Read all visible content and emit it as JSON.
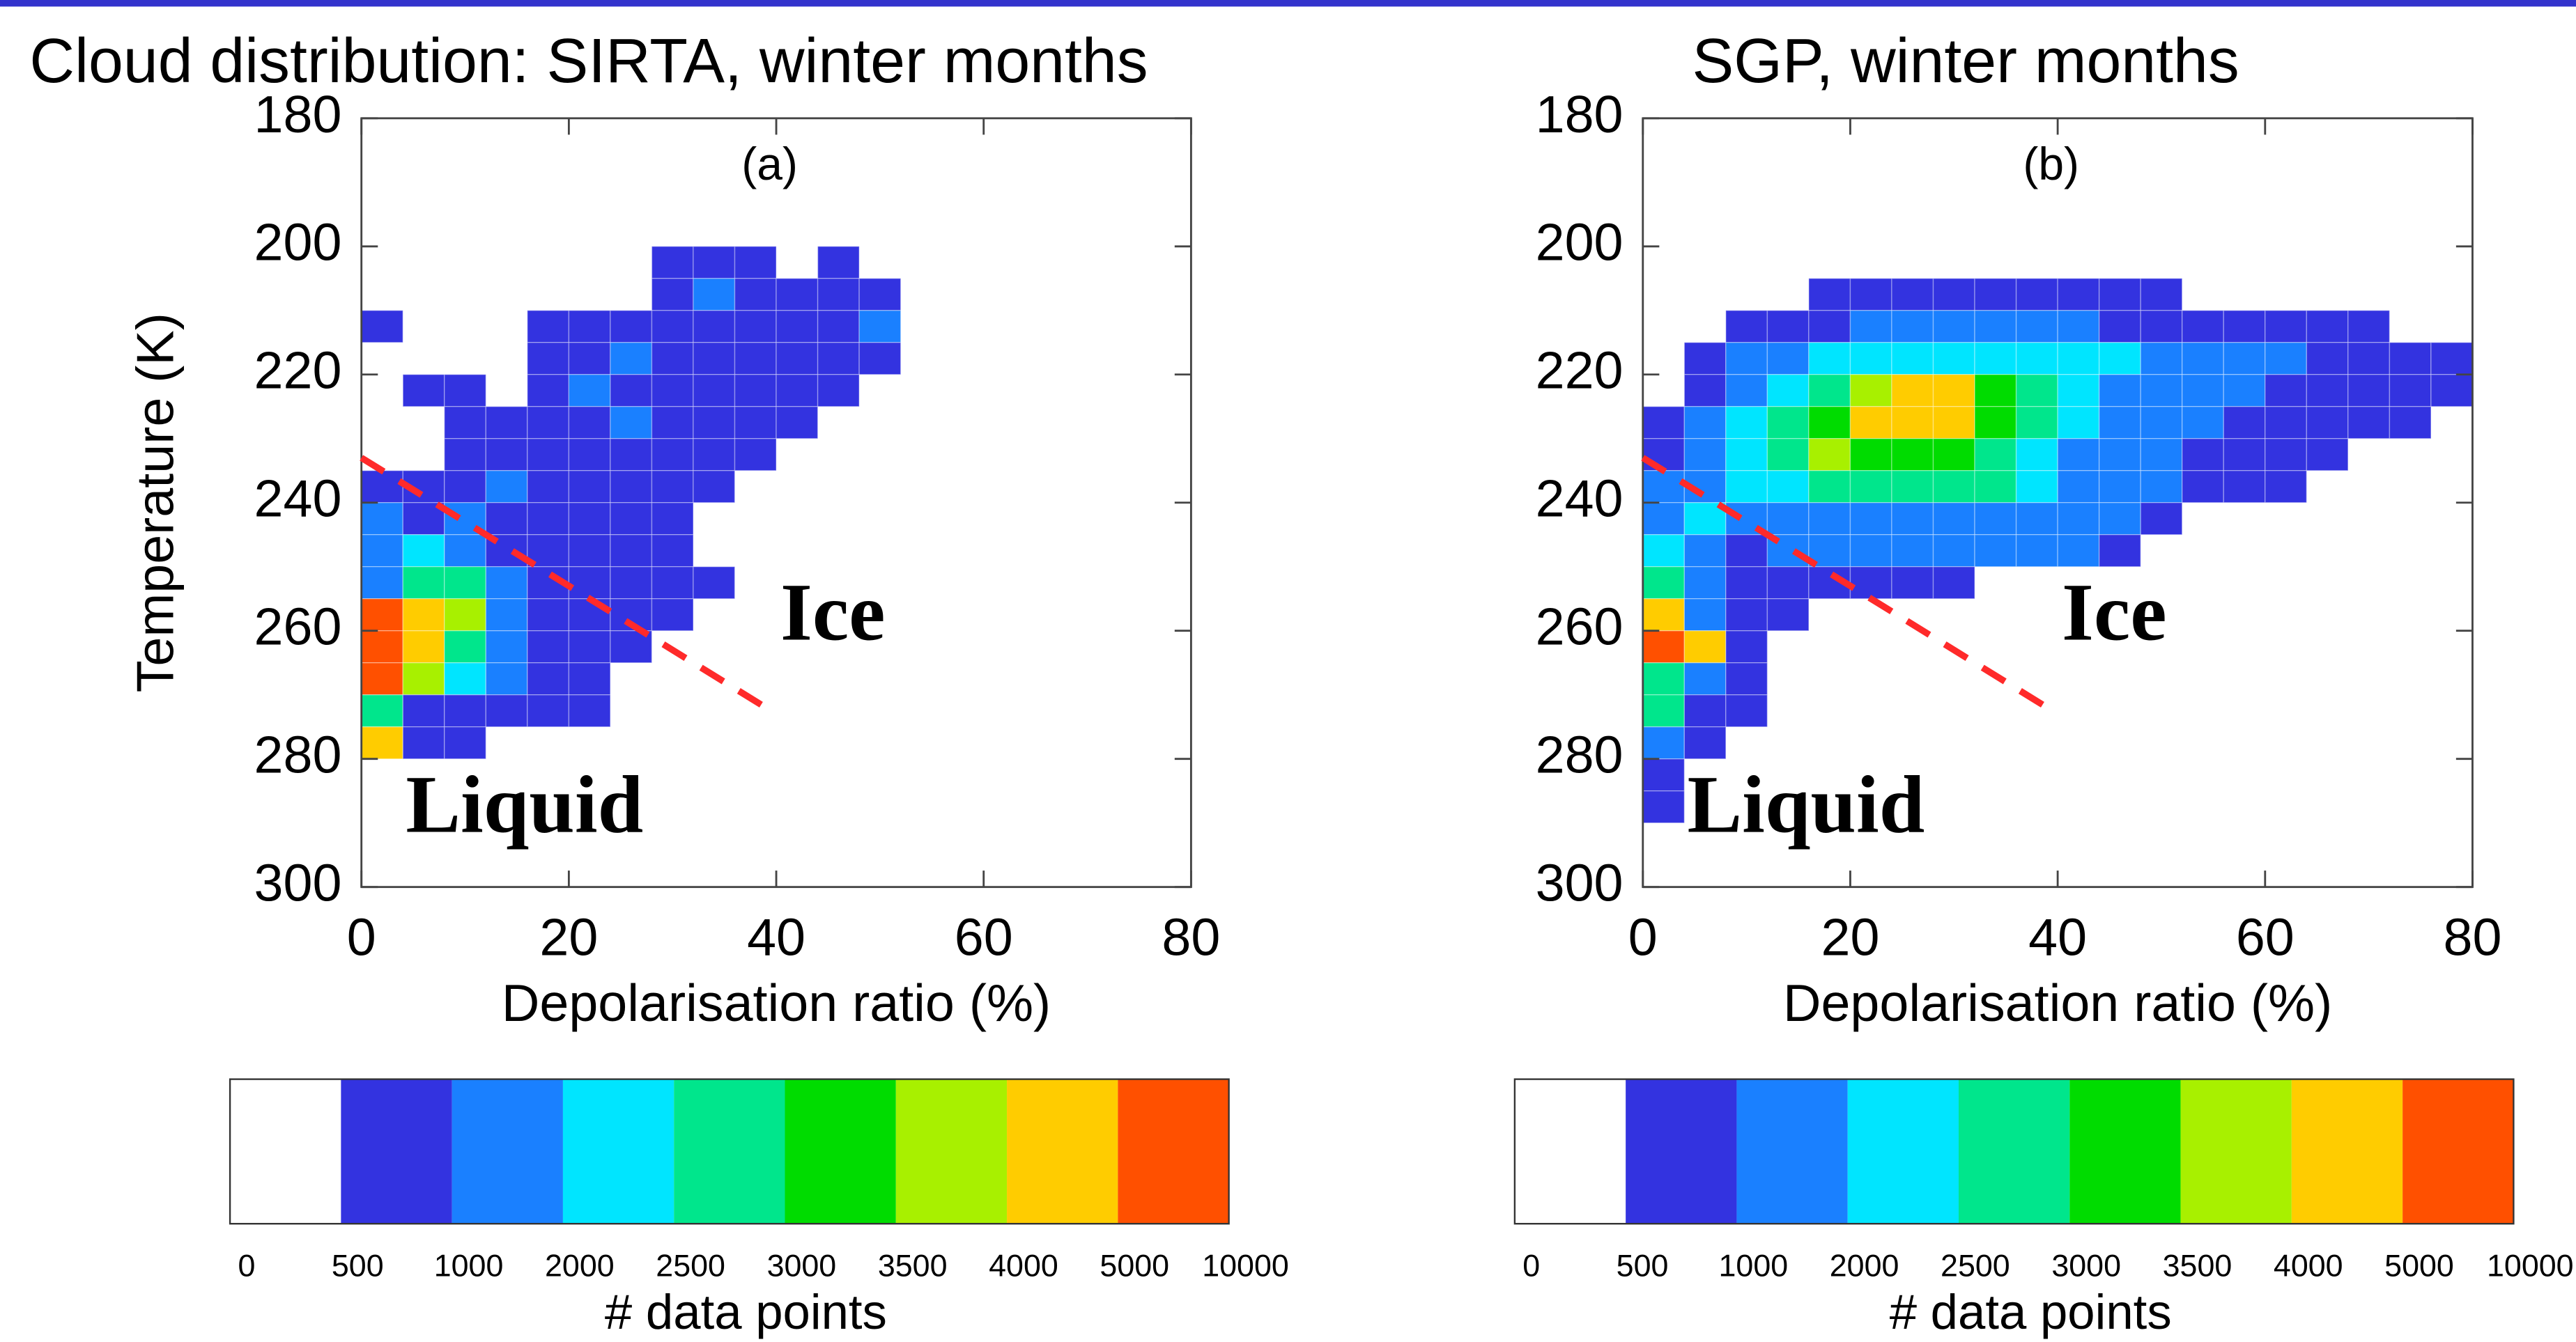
{
  "chart_data": [
    {
      "type": "heatmap",
      "title": "Cloud distribution: SIRTA, winter months",
      "panel_label": "(a)",
      "xlabel": "Depolarisation ratio (%)",
      "ylabel": "Temperature (K)",
      "xlim": [
        0,
        80
      ],
      "ylim": [
        300,
        180
      ],
      "xticks": [
        0,
        20,
        40,
        60,
        80
      ],
      "yticks": [
        180,
        200,
        220,
        240,
        260,
        280,
        300
      ],
      "x_bins": [
        0,
        4,
        8,
        12,
        16,
        20,
        24,
        28,
        32,
        36,
        40,
        44,
        48,
        52,
        56,
        60,
        64,
        68,
        72,
        76,
        80
      ],
      "y_bins": [
        200,
        205,
        210,
        215,
        220,
        225,
        230,
        235,
        240,
        245,
        250,
        255,
        260,
        265,
        270,
        275,
        280,
        285,
        290
      ],
      "z": [
        [
          null,
          null,
          null,
          null,
          null,
          null,
          null,
          700,
          700,
          700,
          null,
          700,
          null,
          null,
          null,
          null,
          null,
          null,
          null,
          null
        ],
        [
          null,
          null,
          null,
          null,
          null,
          null,
          null,
          700,
          1500,
          700,
          700,
          700,
          700,
          null,
          null,
          null,
          null,
          null,
          null,
          null
        ],
        [
          700,
          null,
          null,
          null,
          700,
          700,
          700,
          700,
          700,
          700,
          700,
          700,
          1500,
          null,
          null,
          null,
          null,
          null,
          null,
          null
        ],
        [
          null,
          null,
          null,
          null,
          700,
          700,
          1500,
          700,
          700,
          700,
          700,
          700,
          700,
          null,
          null,
          null,
          null,
          null,
          null,
          null
        ],
        [
          null,
          700,
          700,
          null,
          700,
          1500,
          700,
          700,
          700,
          700,
          700,
          700,
          null,
          null,
          null,
          null,
          null,
          null,
          null,
          null
        ],
        [
          null,
          null,
          700,
          700,
          700,
          700,
          1500,
          700,
          700,
          700,
          700,
          null,
          null,
          null,
          null,
          null,
          null,
          null,
          null,
          null
        ],
        [
          null,
          null,
          700,
          700,
          700,
          700,
          700,
          700,
          700,
          700,
          null,
          null,
          null,
          null,
          null,
          null,
          null,
          null,
          null,
          null
        ],
        [
          700,
          700,
          700,
          1500,
          700,
          700,
          700,
          700,
          700,
          null,
          null,
          null,
          null,
          null,
          null,
          null,
          null,
          null,
          null,
          null
        ],
        [
          1500,
          700,
          1500,
          700,
          700,
          700,
          700,
          700,
          null,
          null,
          null,
          null,
          null,
          null,
          null,
          null,
          null,
          null,
          null,
          null
        ],
        [
          1500,
          2200,
          1500,
          700,
          700,
          700,
          700,
          700,
          null,
          null,
          null,
          null,
          null,
          null,
          null,
          null,
          null,
          null,
          null,
          null
        ],
        [
          1500,
          2700,
          2700,
          1500,
          700,
          700,
          700,
          700,
          700,
          null,
          null,
          null,
          null,
          null,
          null,
          null,
          null,
          null,
          null,
          null
        ],
        [
          6000,
          4500,
          3700,
          1500,
          700,
          700,
          700,
          700,
          null,
          null,
          null,
          null,
          null,
          null,
          null,
          null,
          null,
          null,
          null,
          null
        ],
        [
          6000,
          4500,
          2700,
          1500,
          700,
          700,
          700,
          null,
          null,
          null,
          null,
          null,
          null,
          null,
          null,
          null,
          null,
          null,
          null,
          null
        ],
        [
          6000,
          3700,
          2200,
          1500,
          700,
          700,
          null,
          null,
          null,
          null,
          null,
          null,
          null,
          null,
          null,
          null,
          null,
          null,
          null,
          null
        ],
        [
          2700,
          700,
          700,
          700,
          700,
          700,
          null,
          null,
          null,
          null,
          null,
          null,
          null,
          null,
          null,
          null,
          null,
          null,
          null,
          null
        ],
        [
          4500,
          700,
          700,
          null,
          null,
          null,
          null,
          null,
          null,
          null,
          null,
          null,
          null,
          null,
          null,
          null,
          null,
          null,
          null,
          null
        ],
        [
          null,
          null,
          null,
          null,
          null,
          null,
          null,
          null,
          null,
          null,
          null,
          null,
          null,
          null,
          null,
          null,
          null,
          null,
          null,
          null
        ],
        [
          null,
          null,
          null,
          null,
          null,
          null,
          null,
          null,
          null,
          null,
          null,
          null,
          null,
          null,
          null,
          null,
          null,
          null,
          null,
          null
        ]
      ],
      "divider": {
        "x": [
          0,
          40
        ],
        "y": [
          233,
          273
        ],
        "color": "#ff2a2a"
      },
      "annotations": [
        "Ice",
        "Liquid"
      ],
      "colorbar": {
        "levels": [
          0,
          500,
          1000,
          2000,
          2500,
          3000,
          3500,
          4000,
          5000,
          10000
        ],
        "colors": [
          "#ffffff",
          "#3333e0",
          "#1a80ff",
          "#00e5ff",
          "#00e68c",
          "#00dc00",
          "#a8f000",
          "#ffcc00",
          "#ff5000"
        ],
        "label": "# data points"
      }
    },
    {
      "type": "heatmap",
      "title": "SGP, winter months",
      "panel_label": "(b)",
      "xlabel": "Depolarisation ratio (%)",
      "xlim": [
        0,
        80
      ],
      "ylim": [
        300,
        180
      ],
      "xticks": [
        0,
        20,
        40,
        60,
        80
      ],
      "yticks": [
        180,
        200,
        220,
        240,
        260,
        280,
        300
      ],
      "x_bins": [
        0,
        4,
        8,
        12,
        16,
        20,
        24,
        28,
        32,
        36,
        40,
        44,
        48,
        52,
        56,
        60,
        64,
        68,
        72,
        76,
        80
      ],
      "y_bins": [
        200,
        205,
        210,
        215,
        220,
        225,
        230,
        235,
        240,
        245,
        250,
        255,
        260,
        265,
        270,
        275,
        280,
        285,
        290
      ],
      "z": [
        [
          null,
          null,
          null,
          null,
          null,
          null,
          null,
          null,
          null,
          null,
          null,
          null,
          null,
          null,
          null,
          null,
          null,
          null,
          null,
          null
        ],
        [
          null,
          null,
          null,
          null,
          700,
          700,
          700,
          700,
          700,
          700,
          700,
          700,
          700,
          null,
          null,
          null,
          null,
          null,
          null,
          null
        ],
        [
          null,
          null,
          700,
          700,
          700,
          1500,
          1500,
          1500,
          1500,
          1500,
          1500,
          700,
          700,
          700,
          700,
          700,
          700,
          700,
          null,
          null
        ],
        [
          null,
          700,
          1500,
          1500,
          2200,
          2200,
          2200,
          2200,
          2200,
          2200,
          2200,
          2200,
          1500,
          1500,
          1500,
          1500,
          700,
          700,
          700,
          700
        ],
        [
          null,
          700,
          1500,
          2200,
          2700,
          3700,
          4500,
          4500,
          3200,
          2700,
          2200,
          1500,
          1500,
          1500,
          1500,
          700,
          700,
          700,
          700,
          700
        ],
        [
          700,
          1500,
          2200,
          2700,
          3200,
          4500,
          4500,
          4500,
          3200,
          2700,
          2200,
          1500,
          1500,
          1500,
          700,
          700,
          700,
          700,
          700,
          null
        ],
        [
          700,
          1500,
          2200,
          2700,
          3700,
          3200,
          3200,
          3200,
          2700,
          2200,
          1500,
          1500,
          1500,
          700,
          700,
          700,
          700,
          null,
          null,
          null
        ],
        [
          1500,
          1500,
          2200,
          2200,
          2700,
          2700,
          2700,
          2700,
          2700,
          2200,
          1500,
          1500,
          1500,
          700,
          700,
          700,
          null,
          null,
          null,
          null
        ],
        [
          1500,
          2200,
          1500,
          1500,
          1500,
          1500,
          1500,
          1500,
          1500,
          1500,
          1500,
          1500,
          700,
          null,
          null,
          null,
          null,
          null,
          null,
          null
        ],
        [
          2200,
          1500,
          700,
          1500,
          1500,
          1500,
          1500,
          1500,
          1500,
          1500,
          1500,
          700,
          null,
          null,
          null,
          null,
          null,
          null,
          null,
          null
        ],
        [
          2700,
          1500,
          700,
          700,
          700,
          700,
          700,
          700,
          null,
          null,
          null,
          null,
          null,
          null,
          null,
          null,
          null,
          null,
          null,
          null
        ],
        [
          4500,
          1500,
          700,
          700,
          null,
          null,
          null,
          null,
          null,
          null,
          null,
          null,
          null,
          null,
          null,
          null,
          null,
          null,
          null,
          null
        ],
        [
          6000,
          4500,
          700,
          null,
          null,
          null,
          null,
          null,
          null,
          null,
          null,
          null,
          null,
          null,
          null,
          null,
          null,
          null,
          null,
          null
        ],
        [
          2700,
          1500,
          700,
          null,
          null,
          null,
          null,
          null,
          null,
          null,
          null,
          null,
          null,
          null,
          null,
          null,
          null,
          null,
          null,
          null
        ],
        [
          2700,
          700,
          700,
          null,
          null,
          null,
          null,
          null,
          null,
          null,
          null,
          null,
          null,
          null,
          null,
          null,
          null,
          null,
          null,
          null
        ],
        [
          1500,
          700,
          null,
          null,
          null,
          null,
          null,
          null,
          null,
          null,
          null,
          null,
          null,
          null,
          null,
          null,
          null,
          null,
          null,
          null
        ],
        [
          700,
          null,
          null,
          null,
          null,
          null,
          null,
          null,
          null,
          null,
          null,
          null,
          null,
          null,
          null,
          null,
          null,
          null,
          null,
          null
        ],
        [
          700,
          null,
          null,
          null,
          null,
          null,
          null,
          null,
          null,
          null,
          null,
          null,
          null,
          null,
          null,
          null,
          null,
          null,
          null,
          null
        ]
      ],
      "divider": {
        "x": [
          0,
          40
        ],
        "y": [
          233,
          273
        ],
        "color": "#ff2a2a"
      },
      "annotations": [
        "Ice",
        "Liquid"
      ],
      "colorbar": {
        "levels": [
          0,
          500,
          1000,
          2000,
          2500,
          3000,
          3500,
          4000,
          5000,
          10000
        ],
        "colors": [
          "#ffffff",
          "#3333e0",
          "#1a80ff",
          "#00e5ff",
          "#00e68c",
          "#00dc00",
          "#a8f000",
          "#ffcc00",
          "#ff5000"
        ],
        "label": "# data points"
      }
    }
  ]
}
